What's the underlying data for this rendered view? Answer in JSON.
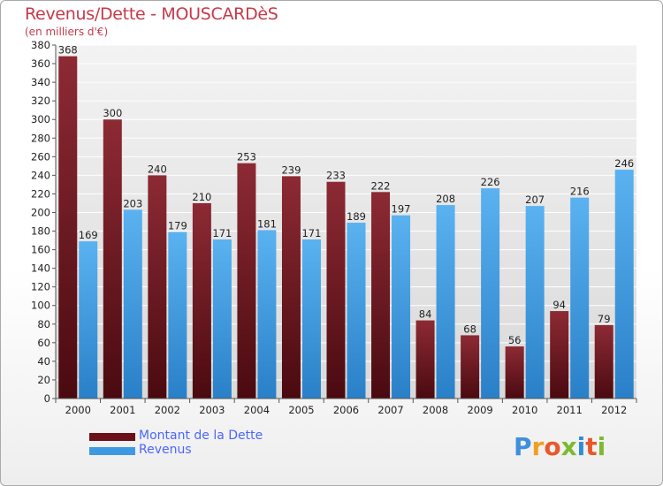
{
  "title": "Revenus/Dette - MOUSCARDèS",
  "subtitle": "(en milliers d'€)",
  "colors": {
    "dette": "#7a1a24",
    "revenus": "#3d9ae2",
    "text_accent": "#c6394a",
    "legend_text": "#4b66ff"
  },
  "chart_data": {
    "type": "bar",
    "categories": [
      "2000",
      "2001",
      "2002",
      "2003",
      "2004",
      "2005",
      "2006",
      "2007",
      "2008",
      "2009",
      "2010",
      "2011",
      "2012"
    ],
    "series": [
      {
        "name": "Montant de la Dette",
        "values": [
          368,
          300,
          240,
          210,
          253,
          239,
          233,
          222,
          84,
          68,
          56,
          94,
          79
        ]
      },
      {
        "name": "Revenus",
        "values": [
          169,
          203,
          179,
          171,
          181,
          171,
          189,
          197,
          208,
          226,
          207,
          216,
          246
        ]
      }
    ],
    "ylim": [
      0,
      380
    ],
    "yticks": [
      0,
      20,
      40,
      60,
      80,
      100,
      120,
      140,
      160,
      180,
      200,
      220,
      240,
      260,
      280,
      300,
      320,
      340,
      360,
      380
    ],
    "grid": true,
    "legend_position": "bottom-left"
  },
  "legend": [
    {
      "label": "Montant de la Dette"
    },
    {
      "label": "Revenus"
    }
  ],
  "logo": {
    "letters": [
      "P",
      "r",
      "o",
      "x",
      "i",
      "t",
      "i"
    ]
  }
}
